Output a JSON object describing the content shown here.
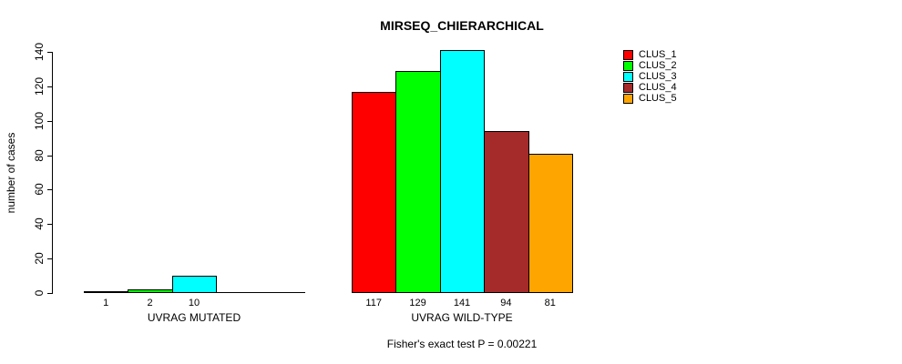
{
  "title": "MIRSEQ_CHIERARCHICAL",
  "chart_data": {
    "type": "bar",
    "title": "MIRSEQ_CHIERARCHICAL",
    "xlabel": "",
    "ylabel": "number of cases",
    "ylim": [
      0,
      140
    ],
    "yticks": [
      0,
      20,
      40,
      60,
      80,
      100,
      120,
      140
    ],
    "grid": false,
    "legend_position": "right",
    "categories": [
      "UVRAG MUTATED",
      "UVRAG WILD-TYPE"
    ],
    "series": [
      {
        "name": "CLUS_1",
        "color": "#FF0000",
        "values": [
          1,
          117
        ]
      },
      {
        "name": "CLUS_2",
        "color": "#00FF00",
        "values": [
          2,
          129
        ]
      },
      {
        "name": "CLUS_3",
        "color": "#00FFFF",
        "values": [
          10,
          141
        ]
      },
      {
        "name": "CLUS_4",
        "color": "#A52A2A",
        "values": [
          0,
          94
        ]
      },
      {
        "name": "CLUS_5",
        "color": "#FFA500",
        "values": [
          0,
          81
        ]
      }
    ],
    "bar_value_labels_shown": true,
    "annotation": "Fisher's exact test P = 0.00221"
  }
}
